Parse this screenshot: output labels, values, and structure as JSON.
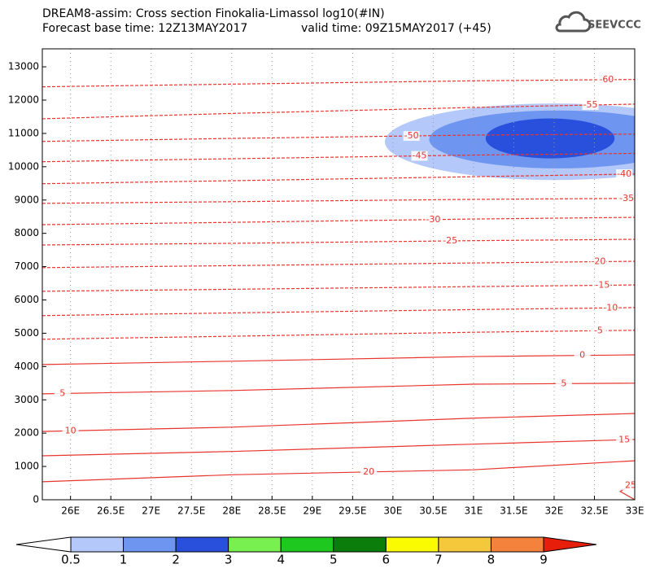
{
  "chart_data": {
    "type": "contour",
    "title": "DREAM8-assim: Cross section Finokalia-Limassol log10(#IN)",
    "subtitle": "Forecast base time: 12Z13MAY2017",
    "valid_time": "valid time: 09Z15MAY2017 (+45)",
    "logo": "SEEVCCC",
    "xlim": [
      25.65,
      33.0
    ],
    "ylim": [
      0,
      13540
    ],
    "xticks": [
      {
        "value": 26,
        "label": "26E"
      },
      {
        "value": 26.5,
        "label": "26.5E"
      },
      {
        "value": 27,
        "label": "27E"
      },
      {
        "value": 27.5,
        "label": "27.5E"
      },
      {
        "value": 28,
        "label": "28E"
      },
      {
        "value": 28.5,
        "label": "28.5E"
      },
      {
        "value": 29,
        "label": "29E"
      },
      {
        "value": 29.5,
        "label": "29.5E"
      },
      {
        "value": 30,
        "label": "30E"
      },
      {
        "value": 30.5,
        "label": "30.5E"
      },
      {
        "value": 31,
        "label": "31E"
      },
      {
        "value": 31.5,
        "label": "31.5E"
      },
      {
        "value": 32,
        "label": "32E"
      },
      {
        "value": 32.5,
        "label": "32.5E"
      },
      {
        "value": 33,
        "label": "33E"
      }
    ],
    "yticks": [
      0,
      1000,
      2000,
      3000,
      4000,
      5000,
      6000,
      7000,
      8000,
      9000,
      10000,
      11000,
      12000,
      13000
    ],
    "grid": "x",
    "contour_color": "#e8352e",
    "negative_dashed": true,
    "shading": [
      {
        "cx": 32.0,
        "rx": 2.1,
        "cy": 10750,
        "ry": 1150,
        "color": "#b4c8fa"
      },
      {
        "cx": 32.05,
        "rx": 1.6,
        "cy": 10820,
        "ry": 870,
        "color": "#6e96f0"
      },
      {
        "cx": 31.95,
        "rx": 0.8,
        "cy": 10850,
        "ry": 600,
        "color": "#2850dc"
      }
    ],
    "contours": [
      {
        "level": -60,
        "x": [
          25.65,
          28,
          31,
          33
        ],
        "heights": [
          12400,
          12480,
          12580,
          12620
        ]
      },
      {
        "level": -55,
        "x": [
          25.65,
          28,
          31,
          33
        ],
        "heights": [
          11440,
          11600,
          11780,
          11880
        ]
      },
      {
        "level": -50,
        "x": [
          25.65,
          28,
          31,
          33
        ],
        "heights": [
          10760,
          10850,
          10950,
          10980
        ]
      },
      {
        "level": -45,
        "x": [
          25.65,
          28,
          31,
          33
        ],
        "heights": [
          10150,
          10240,
          10350,
          10400
        ]
      },
      {
        "level": -40,
        "x": [
          25.65,
          28,
          31,
          33
        ],
        "heights": [
          9490,
          9580,
          9700,
          9780
        ]
      },
      {
        "level": -35,
        "x": [
          25.65,
          28,
          31,
          33
        ],
        "heights": [
          8900,
          8950,
          9020,
          9050
        ]
      },
      {
        "level": -30,
        "x": [
          25.65,
          28,
          31,
          33
        ],
        "heights": [
          8260,
          8330,
          8430,
          8480
        ]
      },
      {
        "level": -25,
        "x": [
          25.65,
          28,
          31,
          33
        ],
        "heights": [
          7650,
          7700,
          7780,
          7820
        ]
      },
      {
        "level": -20,
        "x": [
          25.65,
          28,
          31,
          33
        ],
        "heights": [
          6970,
          7030,
          7110,
          7160
        ]
      },
      {
        "level": -15,
        "x": [
          25.65,
          28,
          31,
          33
        ],
        "heights": [
          6260,
          6320,
          6400,
          6450
        ]
      },
      {
        "level": -10,
        "x": [
          25.65,
          28,
          31,
          33
        ],
        "heights": [
          5530,
          5610,
          5710,
          5770
        ]
      },
      {
        "level": -5,
        "x": [
          25.65,
          28,
          31,
          33
        ],
        "heights": [
          4820,
          4910,
          5030,
          5090
        ]
      },
      {
        "level": 0,
        "x": [
          25.65,
          28,
          31,
          33
        ],
        "heights": [
          4060,
          4160,
          4300,
          4350
        ]
      },
      {
        "level": 5,
        "x": [
          25.65,
          28,
          31,
          33
        ],
        "heights": [
          3180,
          3280,
          3470,
          3500
        ]
      },
      {
        "level": 10,
        "x": [
          25.65,
          28,
          31,
          33
        ],
        "heights": [
          2050,
          2180,
          2450,
          2590
        ]
      },
      {
        "level": 15,
        "x": [
          25.65,
          28,
          31,
          33
        ],
        "heights": [
          1320,
          1450,
          1670,
          1810
        ]
      },
      {
        "level": 20,
        "x": [
          25.65,
          28,
          31,
          33
        ],
        "heights": [
          540,
          750,
          900,
          1170
        ]
      },
      {
        "level": 25,
        "x": [
          33,
          32.82,
          33
        ],
        "heights": [
          500,
          250,
          0
        ]
      }
    ],
    "colorbar": {
      "levels": [
        0.5,
        1,
        2,
        3,
        4,
        5,
        6,
        7,
        8,
        9
      ],
      "colors": [
        "#ffffff",
        "#b4c8fa",
        "#6e96f0",
        "#2850dc",
        "#78f050",
        "#1ec81e",
        "#0a7d0a",
        "#fafa00",
        "#f5c83c",
        "#f5823c",
        "#e61e0a"
      ]
    }
  }
}
